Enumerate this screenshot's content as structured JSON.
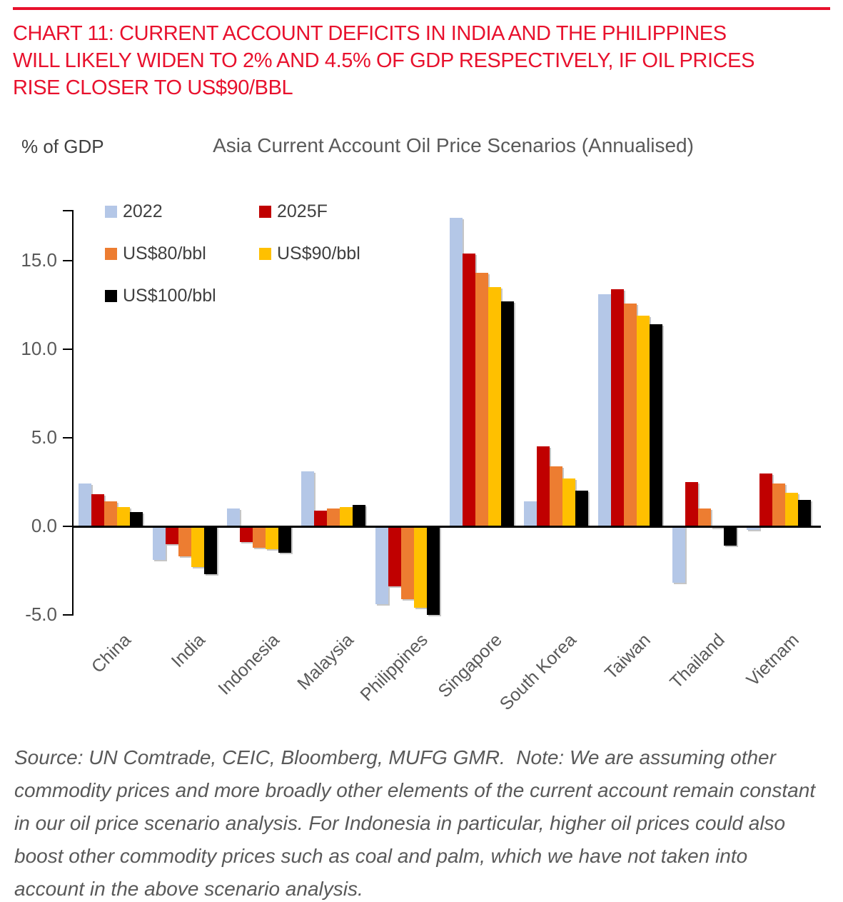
{
  "header": {
    "rule_color": "#E8112D",
    "lines": [
      "CHART 11: CURRENT ACCOUNT DEFICITS IN INDIA AND THE PHILIPPINES",
      "WILL LIKELY WIDEN TO 2% AND 4.5% OF GDP RESPECTIVELY, IF OIL PRICES",
      "RISE CLOSER TO US$90/BBL"
    ]
  },
  "chart": {
    "y_axis_unit_label": "% of GDP",
    "title": "Asia Current Account Oil Price Scenarios (Annualised)"
  },
  "chart_data": {
    "type": "bar",
    "title": "Asia Current Account Oil Price Scenarios (Annualised)",
    "ylabel": "% of GDP",
    "xlabel": "",
    "grid": false,
    "legend_position": "top-left-inside",
    "categories": [
      "China",
      "India",
      "Indonesia",
      "Malaysia",
      "Philippines",
      "Singapore",
      "South Korea",
      "Taiwan",
      "Thailand",
      "Vietnam"
    ],
    "series": [
      {
        "name": "2022",
        "color": "#B4C7E7",
        "values": [
          2.4,
          -1.9,
          1.0,
          3.1,
          -4.4,
          17.4,
          1.4,
          13.1,
          -3.2,
          -0.2
        ]
      },
      {
        "name": "2025F",
        "color": "#C00000",
        "values": [
          1.8,
          -1.0,
          -0.9,
          0.9,
          -3.4,
          15.4,
          4.5,
          13.4,
          2.5,
          3.0
        ]
      },
      {
        "name": "US$80/bbl",
        "color": "#ED7D31",
        "values": [
          1.4,
          -1.7,
          -1.2,
          1.0,
          -4.1,
          14.3,
          3.4,
          12.6,
          1.0,
          2.4
        ]
      },
      {
        "name": "US$90/bbl",
        "color": "#FFC000",
        "values": [
          1.1,
          -2.3,
          -1.3,
          1.1,
          -4.6,
          13.5,
          2.7,
          11.9,
          -0.1,
          1.9
        ]
      },
      {
        "name": "US$100/bbl",
        "color": "#000000",
        "values": [
          0.8,
          -2.7,
          -1.5,
          1.2,
          -5.0,
          12.7,
          2.0,
          11.4,
          -1.1,
          1.5
        ]
      }
    ],
    "yticks": [
      15.0,
      10.0,
      5.0,
      0.0,
      -5.0
    ],
    "ylim": [
      -5,
      18
    ]
  },
  "footer": {
    "text": "Source: UN Comtrade, CEIC, Bloomberg, MUFG GMR.  Note: We are assuming other commodity prices and more broadly other elements of the current account remain constant in our oil price scenario analysis. For Indonesia in particular, higher oil prices could also boost other commodity prices such as coal and palm, which we have not taken into account in the above scenario analysis."
  }
}
